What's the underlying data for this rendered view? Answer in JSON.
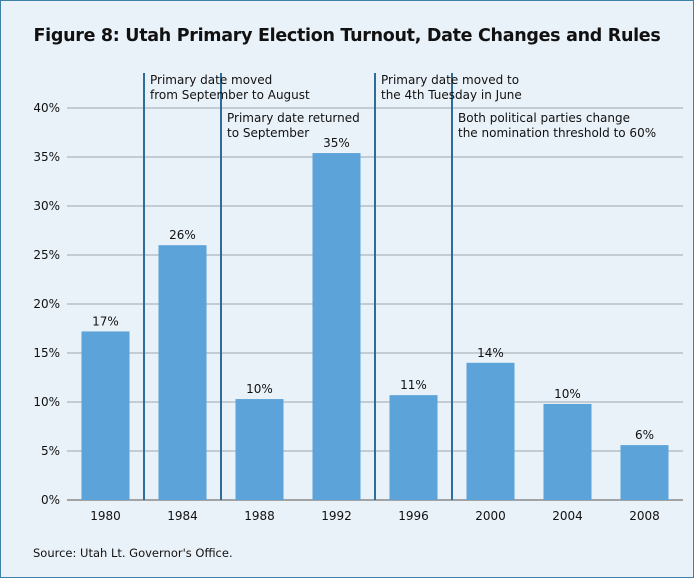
{
  "chart_data": {
    "type": "bar",
    "title": "Figure 8: Utah Primary Election Turnout, Date Changes and Rules",
    "categories": [
      "1980",
      "1984",
      "1988",
      "1992",
      "1996",
      "2000",
      "2004",
      "2008"
    ],
    "values": [
      17.2,
      26.0,
      10.3,
      35.4,
      10.7,
      14.0,
      9.8,
      5.6
    ],
    "data_labels": [
      "17%",
      "26%",
      "10%",
      "35%",
      "11%",
      "14%",
      "10%",
      "6%"
    ],
    "ylim": [
      0,
      40
    ],
    "yticks": [
      "0%",
      "5%",
      "10%",
      "15%",
      "20%",
      "25%",
      "30%",
      "35%",
      "40%"
    ],
    "xlabel": "",
    "ylabel": "",
    "grid": true,
    "bar_color": "#5ba3d8",
    "annotations": [
      {
        "after_category": "1980",
        "lines": [
          "Primary date moved",
          "from September to August"
        ]
      },
      {
        "after_category": "1984",
        "lines": [
          "Primary date returned",
          "to September"
        ]
      },
      {
        "after_category": "1992",
        "lines": [
          "Primary date moved to",
          "the 4th Tuesday in June"
        ]
      },
      {
        "after_category": "1996",
        "lines": [
          "Both political parties change",
          "the nomination threshold to 60%"
        ]
      }
    ]
  },
  "source": "Source: Utah Lt. Governor's Office.",
  "colors": {
    "frame_border": "#3f80a8",
    "background": "#eaf2f9",
    "divider": "#2e6d99",
    "gridline": "#9fa7ad"
  }
}
